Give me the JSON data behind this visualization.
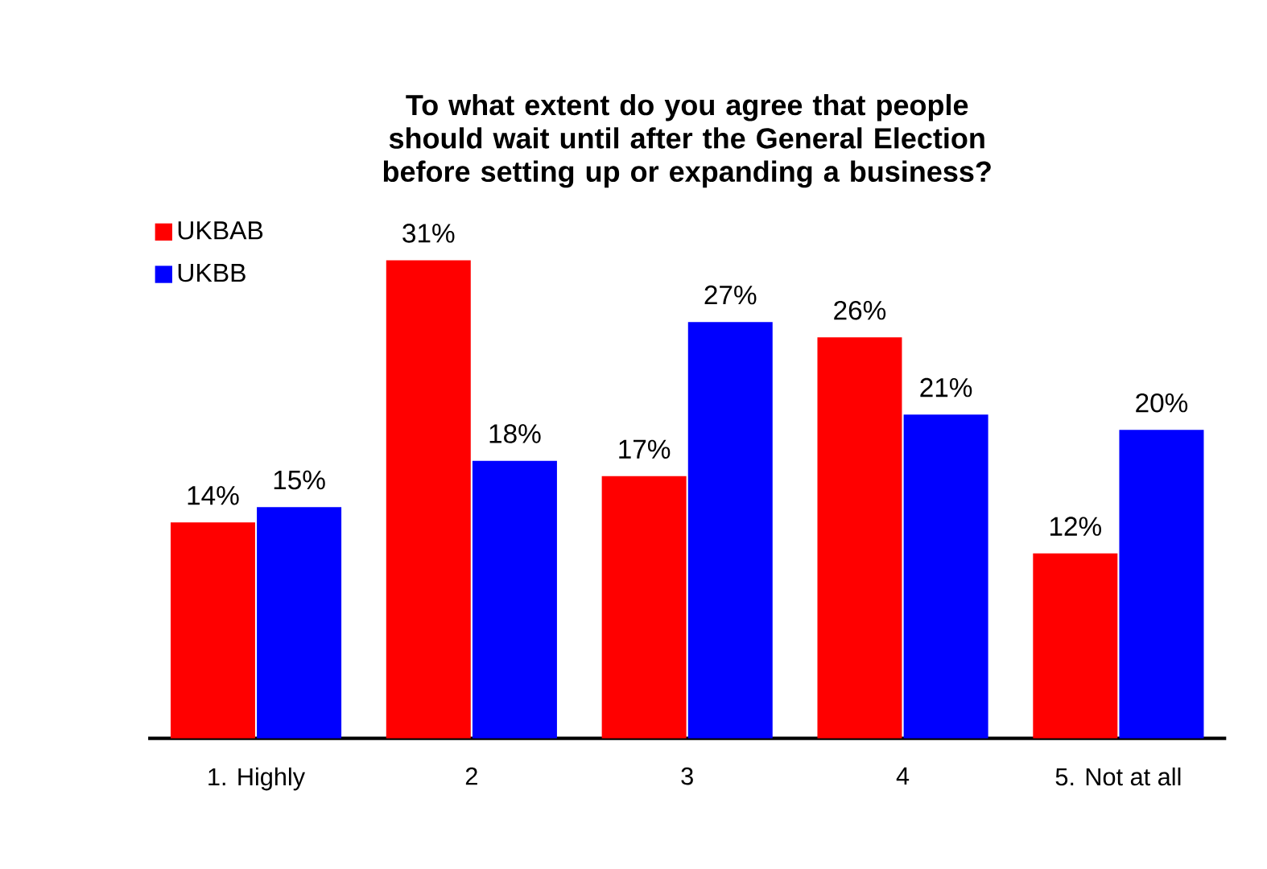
{
  "chart_data": {
    "type": "bar",
    "title": "To what extent do you agree that people should wait until after the General Election before setting up or expanding a business?",
    "categories": [
      "1. Highly",
      "2",
      "3",
      "4",
      "5. Not at all"
    ],
    "series": [
      {
        "name": "UKBAB",
        "color": "#ff0000",
        "values": [
          14,
          31,
          17,
          26,
          12
        ],
        "value_labels": [
          "14%",
          "31%",
          "17%",
          "26%",
          "12%"
        ]
      },
      {
        "name": "UKBB",
        "color": "#0000ff",
        "values": [
          15,
          18,
          27,
          21,
          20
        ],
        "value_labels": [
          "15%",
          "18%",
          "27%",
          "21%",
          "20%"
        ]
      }
    ],
    "legend": "top left"
  }
}
